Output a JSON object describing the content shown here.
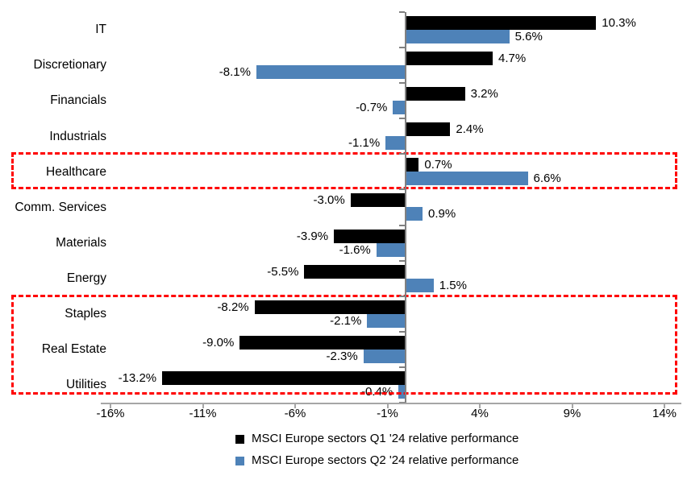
{
  "chart_data": {
    "type": "bar",
    "orientation": "horizontal",
    "title": "",
    "categories": [
      "IT",
      "Discretionary",
      "Financials",
      "Industrials",
      "Healthcare",
      "Comm. Services",
      "Materials",
      "Energy",
      "Staples",
      "Real Estate",
      "Utilities"
    ],
    "series": [
      {
        "name": "MSCI Europe sectors Q1 '24 relative performance",
        "color": "#000000",
        "values": [
          10.3,
          4.7,
          3.2,
          2.4,
          0.7,
          -3.0,
          -3.9,
          -5.5,
          -8.2,
          -9.0,
          -13.2
        ],
        "labels": [
          "10.3%",
          "4.7%",
          "3.2%",
          "2.4%",
          "0.7%",
          "-3.0%",
          "-3.9%",
          "-5.5%",
          "-8.2%",
          "-9.0%",
          "-13.2%"
        ]
      },
      {
        "name": "MSCI Europe sectors Q2 '24 relative performance",
        "color": "#4E82B8",
        "values": [
          5.6,
          -8.1,
          -0.7,
          -1.1,
          6.6,
          0.9,
          -1.6,
          1.5,
          -2.1,
          -2.3,
          -0.4
        ],
        "labels": [
          "5.6%",
          "-8.1%",
          "-0.7%",
          "-1.1%",
          "6.6%",
          "0.9%",
          "-1.6%",
          "1.5%",
          "-2.1%",
          "-2.3%",
          "-0.4%"
        ]
      }
    ],
    "x_axis": {
      "min": -16,
      "max": 14,
      "tick_values": [
        -16,
        -11,
        -6,
        -1,
        4,
        9,
        14
      ],
      "tick_labels": [
        "-16%",
        "-11%",
        "-6%",
        "-1%",
        "4%",
        "9%",
        "14%"
      ]
    },
    "grid": false,
    "legend_position": "bottom-center",
    "highlights": [
      {
        "name": "healthcare-highlight",
        "start_row": 4,
        "end_row": 4,
        "color": "#FF0000"
      },
      {
        "name": "staples-realestate-utilities-highlight",
        "start_row": 8,
        "end_row": 10,
        "color": "#FF0000"
      }
    ],
    "colors": {
      "q1_bar": "#000000",
      "q2_bar": "#4E82B8",
      "highlight": "#FF0000",
      "axis": "#808080",
      "text": "#000000"
    }
  }
}
